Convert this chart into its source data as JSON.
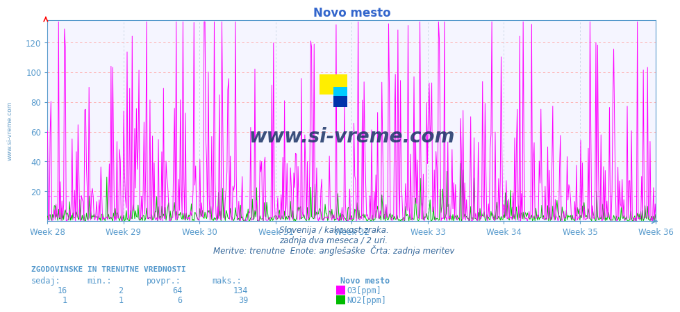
{
  "title": "Novo mesto",
  "subtitle1": "Slovenija / kakovost zraka.",
  "subtitle2": "zadnja dva meseca / 2 uri.",
  "subtitle3": "Meritve: trenutne  Enote: anglešaške  Črta: zadnja meritev",
  "xlabel_weeks": [
    "Week 28",
    "Week 29",
    "Week 30",
    "Week 31",
    "Week 32",
    "Week 33",
    "Week 34",
    "Week 35",
    "Week 36"
  ],
  "ylim": [
    0,
    135
  ],
  "yticks": [
    20,
    40,
    60,
    80,
    100,
    120
  ],
  "hline_y": 17,
  "hline_color": "#ff66ff",
  "o3_color": "#ff00ff",
  "no2_color": "#00bb00",
  "bg_color": "#ffffff",
  "plot_bg_color": "#f5f5ff",
  "grid_color": "#ffaaaa",
  "axis_color": "#5599cc",
  "title_color": "#3366cc",
  "text_color": "#336699",
  "watermark_text": "www.si-vreme.com",
  "watermark_color": "#1a3366",
  "table_header": "ZGODOVINSKE IN TRENUTNE VREDNOSTI",
  "table_cols": [
    "sedaj:",
    "min.:",
    "povpr.:",
    "maks.:"
  ],
  "o3_row": [
    16,
    2,
    64,
    134,
    "O3[ppm]"
  ],
  "no2_row": [
    1,
    1,
    6,
    39,
    "NO2[ppm]"
  ],
  "location_label": "Novo mesto",
  "n_points": 720,
  "week_start": 28,
  "week_end": 36
}
